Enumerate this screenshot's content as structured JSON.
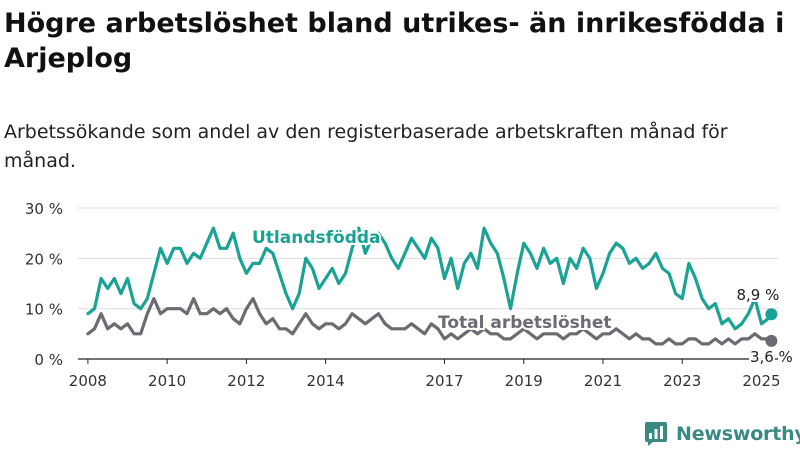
{
  "header": {
    "title": "Högre arbetslöshet bland utrikes- än inrikesfödda i Arjeplog",
    "subtitle": "Arbetssökande som andel av den registerbaserade arbetskraften månad för månad."
  },
  "branding": {
    "logo_text": "Newsworthy",
    "logo_icon": "newsworthy-logo-icon",
    "color": "#3a8a84"
  },
  "chart_data": {
    "type": "line",
    "x_ticks": [
      "2008",
      "2010",
      "2012",
      "2014",
      "2017",
      "2019",
      "2021",
      "2023",
      "2025"
    ],
    "y_ticks": [
      "0 %",
      "10 %",
      "20 %",
      "30 %"
    ],
    "ylim": [
      0,
      30
    ],
    "xlim": [
      "2007-10",
      "2025-06"
    ],
    "grid": "horizontal",
    "series": [
      {
        "name": "Utlandsfödda",
        "color": "#1aa395",
        "end_label": "8,9 %",
        "points": [
          [
            "2008-01",
            9
          ],
          [
            "2008-03",
            10
          ],
          [
            "2008-05",
            16
          ],
          [
            "2008-07",
            14
          ],
          [
            "2008-09",
            16
          ],
          [
            "2008-11",
            13
          ],
          [
            "2009-01",
            16
          ],
          [
            "2009-03",
            11
          ],
          [
            "2009-05",
            10
          ],
          [
            "2009-07",
            12
          ],
          [
            "2009-09",
            17
          ],
          [
            "2009-11",
            22
          ],
          [
            "2010-01",
            19
          ],
          [
            "2010-03",
            22
          ],
          [
            "2010-05",
            22
          ],
          [
            "2010-07",
            19
          ],
          [
            "2010-09",
            21
          ],
          [
            "2010-11",
            20
          ],
          [
            "2011-01",
            23
          ],
          [
            "2011-03",
            26
          ],
          [
            "2011-05",
            22
          ],
          [
            "2011-07",
            22
          ],
          [
            "2011-09",
            25
          ],
          [
            "2011-11",
            20
          ],
          [
            "2012-01",
            17
          ],
          [
            "2012-03",
            19
          ],
          [
            "2012-05",
            19
          ],
          [
            "2012-07",
            22
          ],
          [
            "2012-09",
            21
          ],
          [
            "2012-11",
            17
          ],
          [
            "2013-01",
            13
          ],
          [
            "2013-03",
            10
          ],
          [
            "2013-05",
            13
          ],
          [
            "2013-07",
            20
          ],
          [
            "2013-09",
            18
          ],
          [
            "2013-11",
            14
          ],
          [
            "2014-01",
            16
          ],
          [
            "2014-03",
            18
          ],
          [
            "2014-05",
            15
          ],
          [
            "2014-07",
            17
          ],
          [
            "2014-09",
            22
          ],
          [
            "2014-11",
            26
          ],
          [
            "2015-01",
            21
          ],
          [
            "2015-03",
            24
          ],
          [
            "2015-05",
            25
          ],
          [
            "2015-07",
            23
          ],
          [
            "2015-09",
            20
          ],
          [
            "2015-11",
            18
          ],
          [
            "2016-01",
            21
          ],
          [
            "2016-03",
            24
          ],
          [
            "2016-05",
            22
          ],
          [
            "2016-07",
            20
          ],
          [
            "2016-09",
            24
          ],
          [
            "2016-11",
            22
          ],
          [
            "2017-01",
            16
          ],
          [
            "2017-03",
            20
          ],
          [
            "2017-05",
            14
          ],
          [
            "2017-07",
            19
          ],
          [
            "2017-09",
            21
          ],
          [
            "2017-11",
            18
          ],
          [
            "2018-01",
            26
          ],
          [
            "2018-03",
            23
          ],
          [
            "2018-05",
            21
          ],
          [
            "2018-07",
            16
          ],
          [
            "2018-09",
            10
          ],
          [
            "2018-11",
            17
          ],
          [
            "2019-01",
            23
          ],
          [
            "2019-03",
            21
          ],
          [
            "2019-05",
            18
          ],
          [
            "2019-07",
            22
          ],
          [
            "2019-09",
            19
          ],
          [
            "2019-11",
            20
          ],
          [
            "2020-01",
            15
          ],
          [
            "2020-03",
            20
          ],
          [
            "2020-05",
            18
          ],
          [
            "2020-07",
            22
          ],
          [
            "2020-09",
            20
          ],
          [
            "2020-11",
            14
          ],
          [
            "2021-01",
            17
          ],
          [
            "2021-03",
            21
          ],
          [
            "2021-05",
            23
          ],
          [
            "2021-07",
            22
          ],
          [
            "2021-09",
            19
          ],
          [
            "2021-11",
            20
          ],
          [
            "2022-01",
            18
          ],
          [
            "2022-03",
            19
          ],
          [
            "2022-05",
            21
          ],
          [
            "2022-07",
            18
          ],
          [
            "2022-09",
            17
          ],
          [
            "2022-11",
            13
          ],
          [
            "2023-01",
            12
          ],
          [
            "2023-03",
            19
          ],
          [
            "2023-05",
            16
          ],
          [
            "2023-07",
            12
          ],
          [
            "2023-09",
            10
          ],
          [
            "2023-11",
            11
          ],
          [
            "2024-01",
            7
          ],
          [
            "2024-03",
            8
          ],
          [
            "2024-05",
            6
          ],
          [
            "2024-07",
            7
          ],
          [
            "2024-09",
            9
          ],
          [
            "2024-11",
            12
          ],
          [
            "2025-01",
            7
          ],
          [
            "2025-03",
            8
          ],
          [
            "2025-04",
            8.9
          ]
        ]
      },
      {
        "name": "Total arbetslöshet",
        "color": "#6e6a72",
        "end_label": "3,6 %",
        "points": [
          [
            "2008-01",
            5
          ],
          [
            "2008-03",
            6
          ],
          [
            "2008-05",
            9
          ],
          [
            "2008-07",
            6
          ],
          [
            "2008-09",
            7
          ],
          [
            "2008-11",
            6
          ],
          [
            "2009-01",
            7
          ],
          [
            "2009-03",
            5
          ],
          [
            "2009-05",
            5
          ],
          [
            "2009-07",
            9
          ],
          [
            "2009-09",
            12
          ],
          [
            "2009-11",
            9
          ],
          [
            "2010-01",
            10
          ],
          [
            "2010-03",
            10
          ],
          [
            "2010-05",
            10
          ],
          [
            "2010-07",
            9
          ],
          [
            "2010-09",
            12
          ],
          [
            "2010-11",
            9
          ],
          [
            "2011-01",
            9
          ],
          [
            "2011-03",
            10
          ],
          [
            "2011-05",
            9
          ],
          [
            "2011-07",
            10
          ],
          [
            "2011-09",
            8
          ],
          [
            "2011-11",
            7
          ],
          [
            "2012-01",
            10
          ],
          [
            "2012-03",
            12
          ],
          [
            "2012-05",
            9
          ],
          [
            "2012-07",
            7
          ],
          [
            "2012-09",
            8
          ],
          [
            "2012-11",
            6
          ],
          [
            "2013-01",
            6
          ],
          [
            "2013-03",
            5
          ],
          [
            "2013-05",
            7
          ],
          [
            "2013-07",
            9
          ],
          [
            "2013-09",
            7
          ],
          [
            "2013-11",
            6
          ],
          [
            "2014-01",
            7
          ],
          [
            "2014-03",
            7
          ],
          [
            "2014-05",
            6
          ],
          [
            "2014-07",
            7
          ],
          [
            "2014-09",
            9
          ],
          [
            "2014-11",
            8
          ],
          [
            "2015-01",
            7
          ],
          [
            "2015-03",
            8
          ],
          [
            "2015-05",
            9
          ],
          [
            "2015-07",
            7
          ],
          [
            "2015-09",
            6
          ],
          [
            "2015-11",
            6
          ],
          [
            "2016-01",
            6
          ],
          [
            "2016-03",
            7
          ],
          [
            "2016-05",
            6
          ],
          [
            "2016-07",
            5
          ],
          [
            "2016-09",
            7
          ],
          [
            "2016-11",
            6
          ],
          [
            "2017-01",
            4
          ],
          [
            "2017-03",
            5
          ],
          [
            "2017-05",
            4
          ],
          [
            "2017-07",
            5
          ],
          [
            "2017-09",
            6
          ],
          [
            "2017-11",
            5
          ],
          [
            "2018-01",
            6
          ],
          [
            "2018-03",
            5
          ],
          [
            "2018-05",
            5
          ],
          [
            "2018-07",
            4
          ],
          [
            "2018-09",
            4
          ],
          [
            "2018-11",
            5
          ],
          [
            "2019-01",
            6
          ],
          [
            "2019-03",
            5
          ],
          [
            "2019-05",
            4
          ],
          [
            "2019-07",
            5
          ],
          [
            "2019-09",
            5
          ],
          [
            "2019-11",
            5
          ],
          [
            "2020-01",
            4
          ],
          [
            "2020-03",
            5
          ],
          [
            "2020-05",
            5
          ],
          [
            "2020-07",
            6
          ],
          [
            "2020-09",
            5
          ],
          [
            "2020-11",
            4
          ],
          [
            "2021-01",
            5
          ],
          [
            "2021-03",
            5
          ],
          [
            "2021-05",
            6
          ],
          [
            "2021-07",
            5
          ],
          [
            "2021-09",
            4
          ],
          [
            "2021-11",
            5
          ],
          [
            "2022-01",
            4
          ],
          [
            "2022-03",
            4
          ],
          [
            "2022-05",
            3
          ],
          [
            "2022-07",
            3
          ],
          [
            "2022-09",
            4
          ],
          [
            "2022-11",
            3
          ],
          [
            "2023-01",
            3
          ],
          [
            "2023-03",
            4
          ],
          [
            "2023-05",
            4
          ],
          [
            "2023-07",
            3
          ],
          [
            "2023-09",
            3
          ],
          [
            "2023-11",
            4
          ],
          [
            "2024-01",
            3
          ],
          [
            "2024-03",
            4
          ],
          [
            "2024-05",
            3
          ],
          [
            "2024-07",
            4
          ],
          [
            "2024-09",
            4
          ],
          [
            "2024-11",
            5
          ],
          [
            "2025-01",
            4
          ],
          [
            "2025-03",
            4
          ],
          [
            "2025-04",
            3.6
          ]
        ]
      }
    ]
  }
}
